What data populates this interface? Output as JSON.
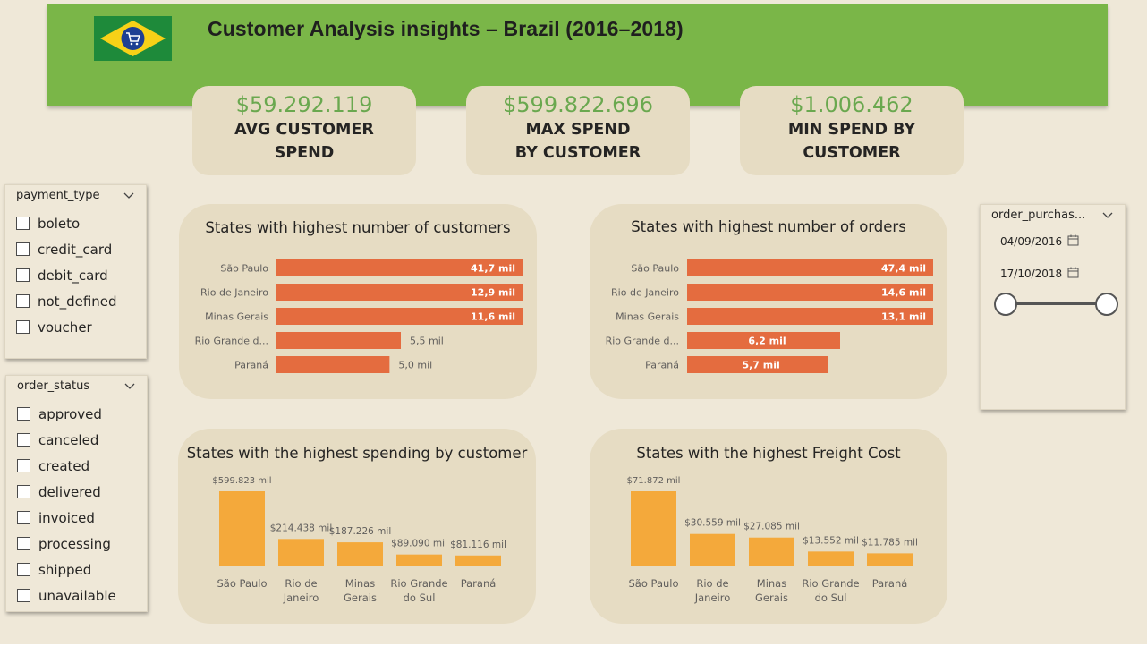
{
  "header": {
    "title": "Customer Analysis insights – Brazil (2016–2018)",
    "flag_icon": "brazil-flag-shopping-cart-icon",
    "colors": {
      "banner": "#7ab648",
      "kpi_value": "#6aa84f",
      "hbar": "#e46c3f",
      "vbar": "#f4a93b"
    }
  },
  "kpis": {
    "avg": {
      "value": "$59.292.119",
      "label_line1": "AVG CUSTOMER",
      "label_line2": "SPEND"
    },
    "max": {
      "value": "$599.822.696",
      "label_line1": "MAX SPEND",
      "label_line2": "BY CUSTOMER"
    },
    "min": {
      "value": "$1.006.462",
      "label_line1": "MIN SPEND BY",
      "label_line2": "CUSTOMER"
    }
  },
  "slicers": {
    "payment_type": {
      "header": "payment_type",
      "items": [
        {
          "label": "boleto",
          "checked": false
        },
        {
          "label": "credit_card",
          "checked": false
        },
        {
          "label": "debit_card",
          "checked": false
        },
        {
          "label": "not_defined",
          "checked": false
        },
        {
          "label": "voucher",
          "checked": false
        }
      ]
    },
    "order_status": {
      "header": "order_status",
      "items": [
        {
          "label": "approved",
          "checked": false
        },
        {
          "label": "canceled",
          "checked": false
        },
        {
          "label": "created",
          "checked": false
        },
        {
          "label": "delivered",
          "checked": false
        },
        {
          "label": "invoiced",
          "checked": false
        },
        {
          "label": "processing",
          "checked": false
        },
        {
          "label": "shipped",
          "checked": false
        },
        {
          "label": "unavailable",
          "checked": false
        }
      ]
    },
    "order_purchase": {
      "header": "order_purchas...",
      "start_date": "04/09/2016",
      "end_date": "17/10/2018"
    }
  },
  "chart_data": [
    {
      "id": "customers",
      "type": "bar",
      "orientation": "horizontal",
      "title": "States with highest number of customers",
      "categories": [
        "São Paulo",
        "Rio de Janeiro",
        "Minas Gerais",
        "Rio Grande d...",
        "Paraná"
      ],
      "values": [
        41700,
        12900,
        11600,
        5500,
        5000
      ],
      "data_labels": [
        "41,7 mil",
        "12,9 mil",
        "11,6 mil",
        "5,5 mil",
        "5,0 mil"
      ],
      "axis_break": true
    },
    {
      "id": "orders",
      "type": "bar",
      "orientation": "horizontal",
      "title": "States with highest number of orders",
      "categories": [
        "São Paulo",
        "Rio de Janeiro",
        "Minas Gerais",
        "Rio Grande d...",
        "Paraná"
      ],
      "values": [
        47400,
        14600,
        13100,
        6200,
        5700
      ],
      "data_labels": [
        "47,4 mil",
        "14,6 mil",
        "13,1 mil",
        "6,2 mil",
        "5,7 mil"
      ],
      "axis_break": true
    },
    {
      "id": "spending",
      "type": "bar",
      "orientation": "vertical",
      "title": "States with the highest spending by customer",
      "categories": [
        [
          "São Paulo"
        ],
        [
          "Rio de",
          "Janeiro"
        ],
        [
          "Minas",
          "Gerais"
        ],
        [
          "Rio Grande",
          "do Sul"
        ],
        [
          "Paraná"
        ]
      ],
      "values": [
        599823,
        214438,
        187226,
        89090,
        81116
      ],
      "data_labels": [
        "$599.823 mil",
        "$214.438 mil",
        "$187.226 mil",
        "$89.090 mil",
        "$81.116 mil"
      ]
    },
    {
      "id": "freight",
      "type": "bar",
      "orientation": "vertical",
      "title": "States with the highest Freight Cost",
      "categories": [
        [
          "São Paulo"
        ],
        [
          "Rio de",
          "Janeiro"
        ],
        [
          "Minas",
          "Gerais"
        ],
        [
          "Rio Grande",
          "do Sul"
        ],
        [
          "Paraná"
        ]
      ],
      "values": [
        71872,
        30559,
        27085,
        13552,
        11785
      ],
      "data_labels": [
        "$71.872 mil",
        "$30.559 mil",
        "$27.085 mil",
        "$13.552 mil",
        "$11.785 mil"
      ]
    }
  ]
}
